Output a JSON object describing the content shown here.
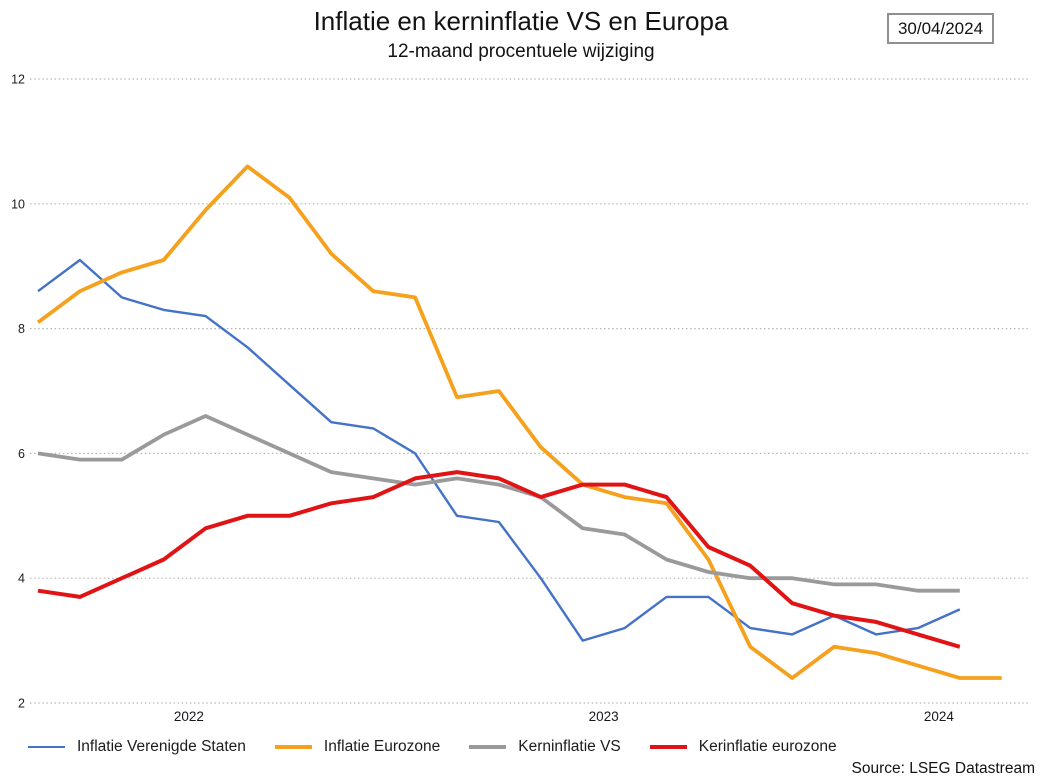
{
  "header": {
    "title": "Inflatie en kerninflatie VS en Europa",
    "subtitle": "12-maand procentuele wijziging",
    "date_badge": "30/04/2024"
  },
  "source": "Source: LSEG Datastream",
  "chart_data": {
    "type": "line",
    "title": "Inflatie en kerninflatie VS en Europa",
    "subtitle": "12-maand procentuele wijziging",
    "ylabel": "",
    "xlabel": "",
    "ylim": [
      2,
      12
    ],
    "yticks": [
      2,
      4,
      6,
      8,
      10,
      12
    ],
    "grid": "dotted-horizontal",
    "gridline_color": "#b5b5b5",
    "legend_position": "bottom-left",
    "x_months": [
      "2022-05",
      "2022-06",
      "2022-07",
      "2022-08",
      "2022-09",
      "2022-10",
      "2022-11",
      "2022-12",
      "2023-01",
      "2023-02",
      "2023-03",
      "2023-04",
      "2023-05",
      "2023-06",
      "2023-07",
      "2023-08",
      "2023-09",
      "2023-10",
      "2023-11",
      "2023-12",
      "2024-01",
      "2024-02",
      "2024-03",
      "2024-04"
    ],
    "x_ticks": [
      {
        "label": "2022",
        "month_index": 3.6
      },
      {
        "label": "2023",
        "month_index": 13.5
      },
      {
        "label": "2024",
        "month_index": 21.5
      }
    ],
    "series": [
      {
        "name": "Inflatie Verenigde Staten",
        "color": "#4472c8",
        "line_width": 2.4,
        "values": [
          8.6,
          9.1,
          8.5,
          8.3,
          8.2,
          7.7,
          7.1,
          6.5,
          6.4,
          6.0,
          5.0,
          4.9,
          4.0,
          3.0,
          3.2,
          3.7,
          3.7,
          3.2,
          3.1,
          3.4,
          3.1,
          3.2,
          3.5
        ]
      },
      {
        "name": "Inflatie Eurozone",
        "color": "#f5a11d",
        "line_width": 3.8,
        "values": [
          8.1,
          8.6,
          8.9,
          9.1,
          9.9,
          10.6,
          10.1,
          9.2,
          8.6,
          8.5,
          6.9,
          7.0,
          6.1,
          5.5,
          5.3,
          5.2,
          4.3,
          2.9,
          2.4,
          2.9,
          2.8,
          2.6,
          2.4,
          2.4
        ]
      },
      {
        "name": "Kerninflatie VS",
        "color": "#9a9a9a",
        "line_width": 3.8,
        "values": [
          6.0,
          5.9,
          5.9,
          6.3,
          6.6,
          6.3,
          6.0,
          5.7,
          5.6,
          5.5,
          5.6,
          5.5,
          5.3,
          4.8,
          4.7,
          4.3,
          4.1,
          4.0,
          4.0,
          3.9,
          3.9,
          3.8,
          3.8
        ]
      },
      {
        "name": "Kerinflatie eurozone",
        "color": "#e01414",
        "line_width": 4.0,
        "values": [
          3.8,
          3.7,
          4.0,
          4.3,
          4.8,
          5.0,
          5.0,
          5.2,
          5.3,
          5.6,
          5.7,
          5.6,
          5.3,
          5.5,
          5.5,
          5.3,
          4.5,
          4.2,
          3.6,
          3.4,
          3.3,
          3.1,
          2.9
        ]
      }
    ]
  }
}
